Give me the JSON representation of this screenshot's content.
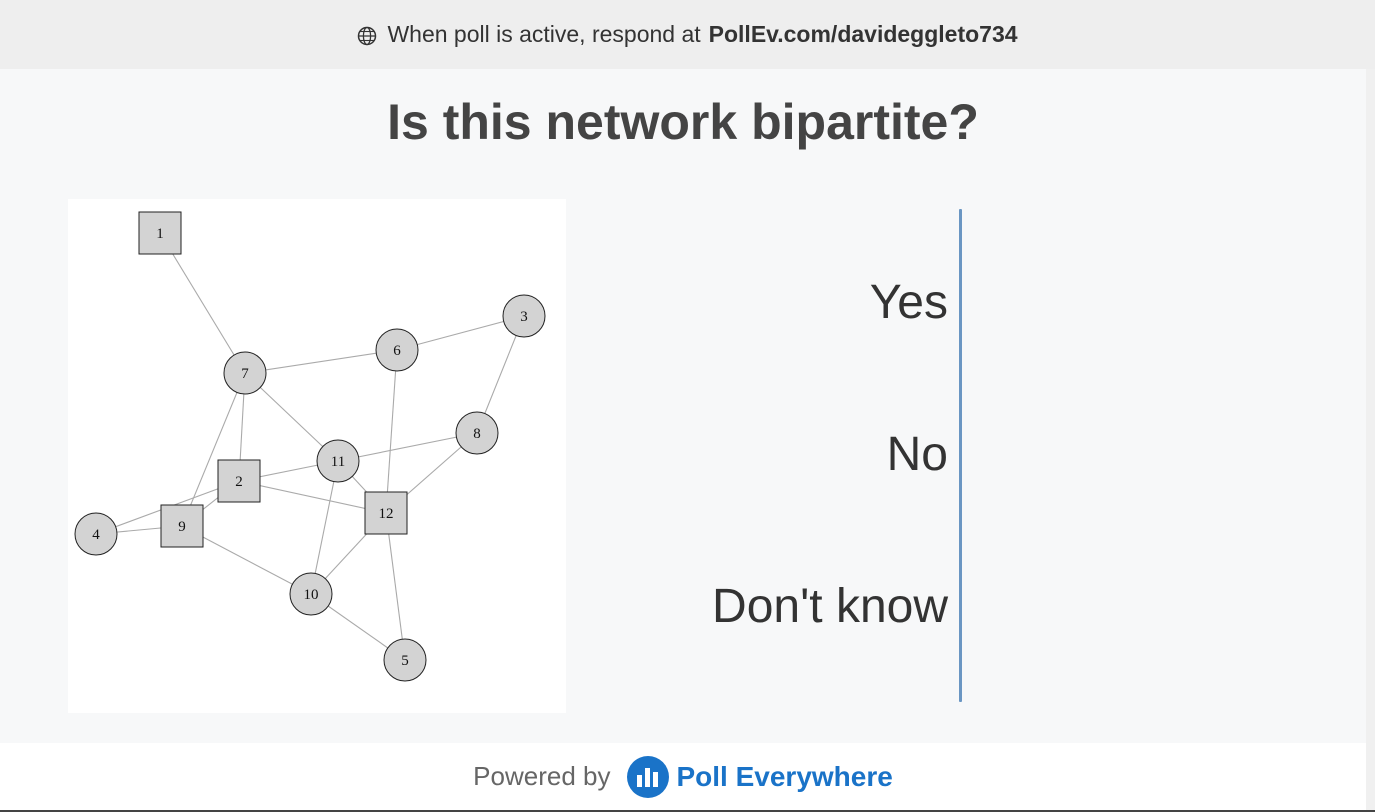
{
  "topbar": {
    "prefix": "When poll is active, respond at",
    "url": "PollEv.com/davideggleto734",
    "icon": "globe-icon"
  },
  "question": {
    "title": "Is this network bipartite?"
  },
  "graph": {
    "nodes": [
      {
        "id": "1",
        "shape": "square"
      },
      {
        "id": "2",
        "shape": "square"
      },
      {
        "id": "3",
        "shape": "circle"
      },
      {
        "id": "4",
        "shape": "circle"
      },
      {
        "id": "5",
        "shape": "circle"
      },
      {
        "id": "6",
        "shape": "circle"
      },
      {
        "id": "7",
        "shape": "circle"
      },
      {
        "id": "8",
        "shape": "circle"
      },
      {
        "id": "9",
        "shape": "square"
      },
      {
        "id": "10",
        "shape": "circle"
      },
      {
        "id": "11",
        "shape": "circle"
      },
      {
        "id": "12",
        "shape": "square"
      }
    ],
    "edges": [
      [
        "1",
        "7"
      ],
      [
        "7",
        "6"
      ],
      [
        "6",
        "3"
      ],
      [
        "3",
        "8"
      ],
      [
        "7",
        "2"
      ],
      [
        "7",
        "11"
      ],
      [
        "7",
        "9"
      ],
      [
        "6",
        "12"
      ],
      [
        "8",
        "11"
      ],
      [
        "8",
        "12"
      ],
      [
        "11",
        "2"
      ],
      [
        "11",
        "12"
      ],
      [
        "11",
        "10"
      ],
      [
        "2",
        "12"
      ],
      [
        "2",
        "9"
      ],
      [
        "4",
        "9"
      ],
      [
        "4",
        "2"
      ],
      [
        "9",
        "10"
      ],
      [
        "10",
        "12"
      ],
      [
        "10",
        "5"
      ],
      [
        "12",
        "5"
      ]
    ]
  },
  "options": [
    {
      "label": "Yes"
    },
    {
      "label": "No"
    },
    {
      "label": "Don't know"
    }
  ],
  "footer": {
    "powered_by": "Powered by",
    "brand": "Poll Everywhere"
  },
  "colors": {
    "brand": "#1a73c8",
    "axis": "#6a96c3",
    "node_fill": "#d3d3d3"
  }
}
